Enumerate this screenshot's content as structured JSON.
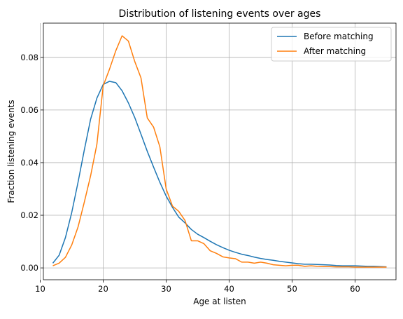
{
  "chart_data": {
    "type": "line",
    "title": "Distribution of listening events over ages",
    "xlabel": "Age at listen",
    "ylabel": "Fraction listening events",
    "xlim": [
      10.5,
      66.5
    ],
    "ylim": [
      -0.0045,
      0.093
    ],
    "xticks": [
      10,
      20,
      30,
      40,
      50,
      60
    ],
    "yticks": [
      0.0,
      0.02,
      0.04,
      0.06,
      0.08
    ],
    "ytick_labels": [
      "0.00",
      "0.02",
      "0.04",
      "0.06",
      "0.08"
    ],
    "grid": true,
    "legend_position": "top-right",
    "x": [
      12,
      13,
      14,
      15,
      16,
      17,
      18,
      19,
      20,
      21,
      22,
      23,
      24,
      25,
      26,
      27,
      28,
      29,
      30,
      31,
      32,
      33,
      34,
      35,
      36,
      37,
      38,
      39,
      40,
      41,
      42,
      43,
      44,
      45,
      46,
      47,
      48,
      49,
      50,
      51,
      52,
      53,
      54,
      55,
      56,
      57,
      58,
      59,
      60,
      61,
      62,
      63,
      64,
      65
    ],
    "series": [
      {
        "name": "Before matching",
        "color": "#1f77b4",
        "values": [
          0.0018,
          0.0048,
          0.0115,
          0.021,
          0.0325,
          0.0448,
          0.0565,
          0.0645,
          0.0697,
          0.0709,
          0.0704,
          0.0673,
          0.0627,
          0.0572,
          0.0508,
          0.0443,
          0.0383,
          0.0325,
          0.0273,
          0.023,
          0.0193,
          0.0171,
          0.0146,
          0.0128,
          0.0115,
          0.0101,
          0.0088,
          0.0077,
          0.0067,
          0.0059,
          0.0052,
          0.0047,
          0.0041,
          0.0036,
          0.0032,
          0.0029,
          0.0025,
          0.0022,
          0.0019,
          0.0016,
          0.0014,
          0.0014,
          0.0013,
          0.0012,
          0.0011,
          0.0009,
          0.0008,
          0.0008,
          0.0008,
          0.0007,
          0.0006,
          0.0006,
          0.0005,
          0.0004
        ]
      },
      {
        "name": "After matching",
        "color": "#ff7f0e",
        "values": [
          0.0008,
          0.0018,
          0.004,
          0.0087,
          0.0155,
          0.025,
          0.035,
          0.047,
          0.0692,
          0.0755,
          0.0825,
          0.0882,
          0.0862,
          0.0785,
          0.0722,
          0.057,
          0.0535,
          0.046,
          0.03,
          0.0235,
          0.0215,
          0.018,
          0.0103,
          0.0103,
          0.0092,
          0.0065,
          0.0055,
          0.0042,
          0.0038,
          0.0035,
          0.0022,
          0.0022,
          0.0018,
          0.0022,
          0.0018,
          0.0012,
          0.001,
          0.0008,
          0.001,
          0.001,
          0.0006,
          0.0008,
          0.0006,
          0.0005,
          0.0005,
          0.0004,
          0.0004,
          0.0004,
          0.0003,
          0.0003,
          0.0003,
          0.0003,
          0.0003,
          0.0003
        ]
      }
    ]
  }
}
